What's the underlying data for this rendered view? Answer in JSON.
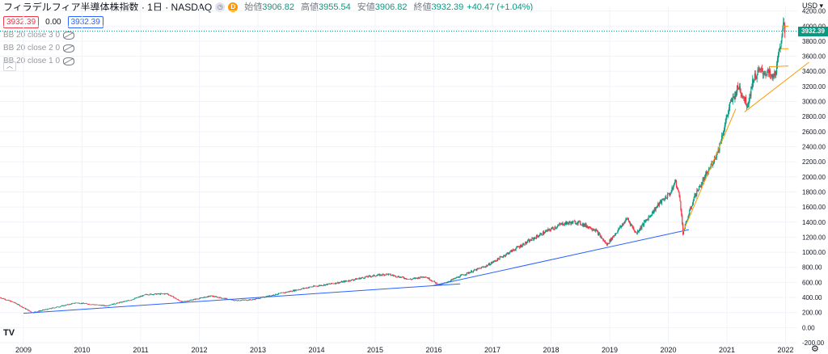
{
  "header": {
    "symbol_title": "フィラデルフィア半導体株指数 · 1日 · NASDAQ",
    "badge_d": "D",
    "ohlc": [
      {
        "label": "始値",
        "value": "3906.82"
      },
      {
        "label": "高値",
        "value": "3955.54"
      },
      {
        "label": "安値",
        "value": "3906.82"
      },
      {
        "label": "終値",
        "value": "3932.39"
      }
    ],
    "change": "+40.47 (+1.04%)",
    "sell_price": "3932.39",
    "spread": "0.00",
    "buy_price": "3932.39"
  },
  "indicators": [
    {
      "label": "BB 20 close 3 0"
    },
    {
      "label": "BB 20 close 2 0"
    },
    {
      "label": "BB 20 close 1 0"
    }
  ],
  "price_axis": {
    "currency": "USD",
    "last_price_tag": "3932.39"
  },
  "colors": {
    "up": "#089981",
    "down": "#f23645",
    "trend_blue": "#2962ff",
    "trend_orange": "#ff9800",
    "last_line": "#089981"
  },
  "icons": {
    "logo": "tradingview-logo",
    "settings": "gear-icon",
    "visibility": "eye-slash-icon",
    "collapse": "chevron-up-icon"
  },
  "logo_text": "TV",
  "gear_text": "⚙",
  "chart_data": {
    "type": "candlestick",
    "x_unit": "year",
    "x_ticks": [
      "2009",
      "2010",
      "2011",
      "2012",
      "2013",
      "2014",
      "2015",
      "2016",
      "2017",
      "2018",
      "2019",
      "2020",
      "2021",
      "2022"
    ],
    "y_ticks": [
      -200,
      0,
      200,
      400,
      600,
      800,
      1000,
      1200,
      1400,
      1600,
      1800,
      2000,
      2200,
      2400,
      2600,
      2800,
      3000,
      3200,
      3400,
      3600,
      3800,
      4000,
      4200
    ],
    "y_tick_labels": [
      "-200.00",
      "0.00",
      "200.00",
      "400.00",
      "600.00",
      "800.00",
      "1000.00",
      "1200.00",
      "1400.00",
      "1600.00",
      "1800.00",
      "2000.00",
      "2200.00",
      "2400.00",
      "2600.00",
      "2800.00",
      "3000.00",
      "3200.00",
      "3400.00",
      "3600.00",
      "3800.00",
      "4000.00",
      "4200.00"
    ],
    "ylim": [
      -200,
      4260
    ],
    "xlim": [
      2008.6,
      2022.2
    ],
    "price_path": [
      [
        2008.6,
        400
      ],
      [
        2008.85,
        330
      ],
      [
        2009.15,
        200
      ],
      [
        2009.5,
        260
      ],
      [
        2009.9,
        330
      ],
      [
        2010.4,
        290
      ],
      [
        2010.8,
        360
      ],
      [
        2011.1,
        440
      ],
      [
        2011.45,
        450
      ],
      [
        2011.7,
        340
      ],
      [
        2012.2,
        420
      ],
      [
        2012.6,
        360
      ],
      [
        2012.9,
        370
      ],
      [
        2013.3,
        440
      ],
      [
        2013.9,
        540
      ],
      [
        2014.4,
        600
      ],
      [
        2014.9,
        680
      ],
      [
        2015.2,
        710
      ],
      [
        2015.6,
        640
      ],
      [
        2015.85,
        680
      ],
      [
        2016.1,
        560
      ],
      [
        2016.5,
        700
      ],
      [
        2016.9,
        820
      ],
      [
        2017.4,
        1050
      ],
      [
        2017.9,
        1270
      ],
      [
        2018.2,
        1380
      ],
      [
        2018.45,
        1400
      ],
      [
        2018.75,
        1300
      ],
      [
        2018.95,
        1100
      ],
      [
        2019.3,
        1450
      ],
      [
        2019.45,
        1250
      ],
      [
        2019.85,
        1650
      ],
      [
        2020.05,
        1800
      ],
      [
        2020.12,
        1950
      ],
      [
        2020.2,
        1700
      ],
      [
        2020.25,
        1260
      ],
      [
        2020.45,
        1750
      ],
      [
        2020.7,
        2100
      ],
      [
        2020.85,
        2350
      ],
      [
        2021.05,
        2950
      ],
      [
        2021.2,
        3200
      ],
      [
        2021.35,
        2950
      ],
      [
        2021.45,
        3300
      ],
      [
        2021.55,
        3400
      ],
      [
        2021.7,
        3380
      ],
      [
        2021.78,
        3300
      ],
      [
        2021.85,
        3450
      ],
      [
        2021.92,
        3800
      ],
      [
        2021.95,
        4000
      ],
      [
        2022.0,
        3932
      ]
    ],
    "trend_lines": [
      {
        "color": "blue",
        "points": [
          [
            2009.0,
            190
          ],
          [
            2016.45,
            580
          ]
        ]
      },
      {
        "color": "blue",
        "points": [
          [
            2016.0,
            560
          ],
          [
            2020.35,
            1300
          ]
        ]
      },
      {
        "color": "orange",
        "points": [
          [
            2020.25,
            1270
          ],
          [
            2021.15,
            2900
          ]
        ]
      },
      {
        "color": "orange",
        "points": [
          [
            2021.3,
            2860
          ],
          [
            2022.4,
            3520
          ]
        ]
      },
      {
        "color": "orange",
        "points": [
          [
            2021.72,
            3460
          ],
          [
            2022.05,
            3470
          ]
        ]
      },
      {
        "color": "orange",
        "points": [
          [
            2021.92,
            3700
          ],
          [
            2022.05,
            3700
          ]
        ]
      },
      {
        "color": "orange",
        "points": [
          [
            2021.95,
            3990
          ],
          [
            2022.05,
            4000
          ]
        ]
      }
    ],
    "last_price": 3932.39
  }
}
